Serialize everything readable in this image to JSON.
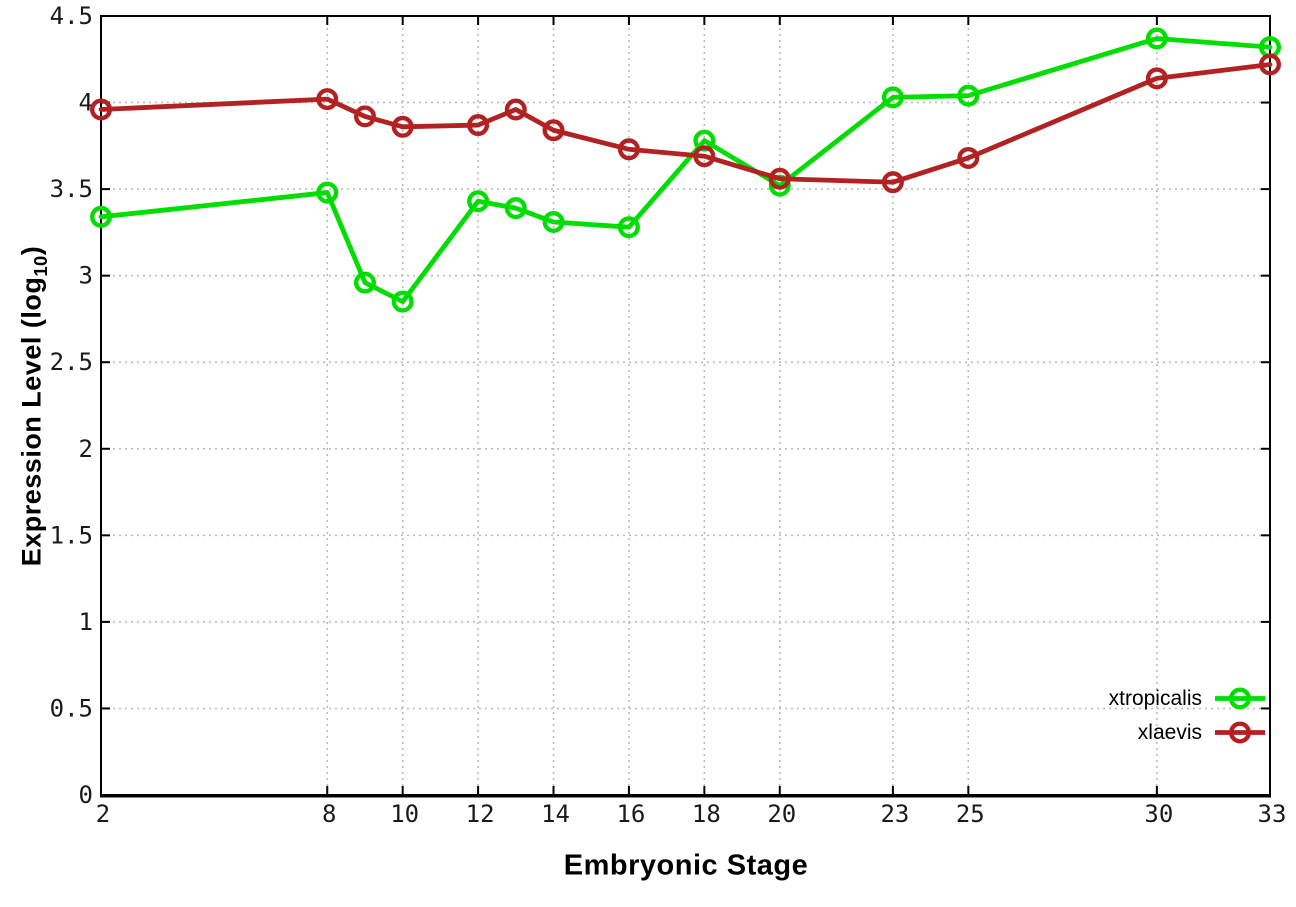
{
  "page": {
    "background": "#ffffff"
  },
  "chart_data": {
    "type": "line",
    "title": "",
    "xlabel": "Embryonic Stage",
    "ylabel": "Expression Level (log10)",
    "ylabel_parts": {
      "main": "Expression Level (log",
      "sub": "10",
      "close": ")"
    },
    "x": [
      2,
      8,
      9,
      10,
      12,
      13,
      14,
      16,
      18,
      20,
      23,
      25,
      30,
      33
    ],
    "xlim": [
      2,
      33
    ],
    "xticks": [
      2,
      8,
      10,
      12,
      14,
      16,
      18,
      20,
      23,
      25,
      30,
      33
    ],
    "ylim": [
      0,
      4.5
    ],
    "yticks": [
      0,
      0.5,
      1,
      1.5,
      2,
      2.5,
      3,
      3.5,
      4,
      4.5
    ],
    "grid": "dotted",
    "legend_position": "inside-bottom-right",
    "axis_color": "#000000",
    "grid_color": "#b8b8b8",
    "tick_label_color": "#1a1a1a",
    "series": [
      {
        "name": "xtropicalis",
        "color": "#00dd00",
        "marker": "open-circle",
        "values": [
          3.34,
          3.48,
          2.96,
          2.85,
          3.43,
          3.39,
          3.31,
          3.28,
          3.78,
          3.52,
          4.03,
          4.04,
          4.37,
          4.32
        ]
      },
      {
        "name": "xlaevis",
        "color": "#b22222",
        "marker": "open-circle",
        "values": [
          3.96,
          4.02,
          3.92,
          3.86,
          3.87,
          3.96,
          3.84,
          3.73,
          3.69,
          3.56,
          3.54,
          3.68,
          4.14,
          4.22
        ]
      }
    ]
  }
}
